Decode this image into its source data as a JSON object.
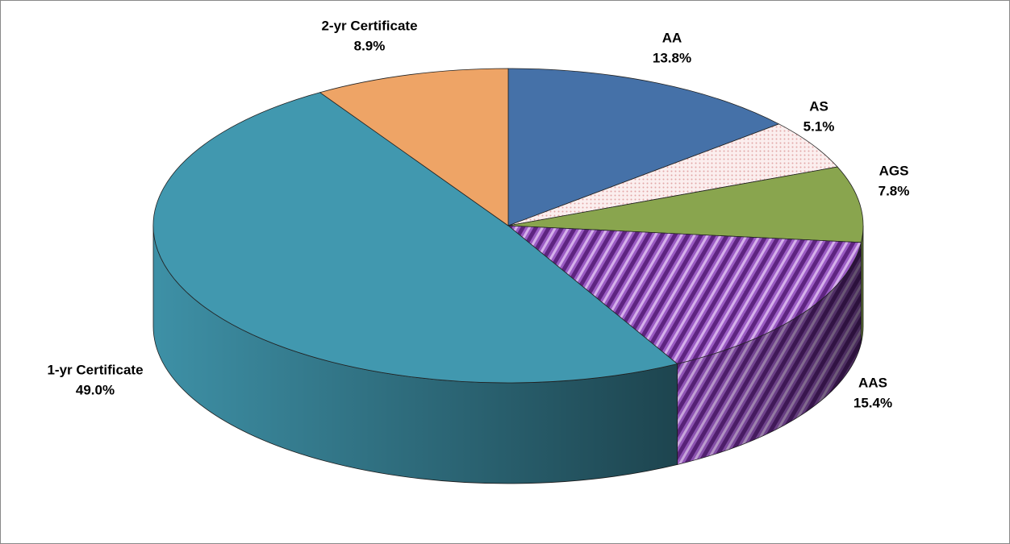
{
  "chart_data": {
    "type": "pie3d",
    "categories": [
      "AA",
      "AS",
      "AGS",
      "AAS",
      "1-yr Certificate",
      "2-yr Certificate"
    ],
    "values": [
      13.8,
      5.1,
      7.8,
      15.4,
      49.0,
      8.9
    ],
    "value_labels": [
      "13.8%",
      "5.1%",
      "7.8%",
      "15.4%",
      "49.0%",
      "8.9%"
    ],
    "colors": [
      "#4571a8",
      "#f6dede",
      "#89a54e",
      "#8a45b0",
      "#4198af",
      "#eea466"
    ],
    "patterns": [
      null,
      "dots",
      null,
      "stripes",
      null,
      null
    ]
  }
}
